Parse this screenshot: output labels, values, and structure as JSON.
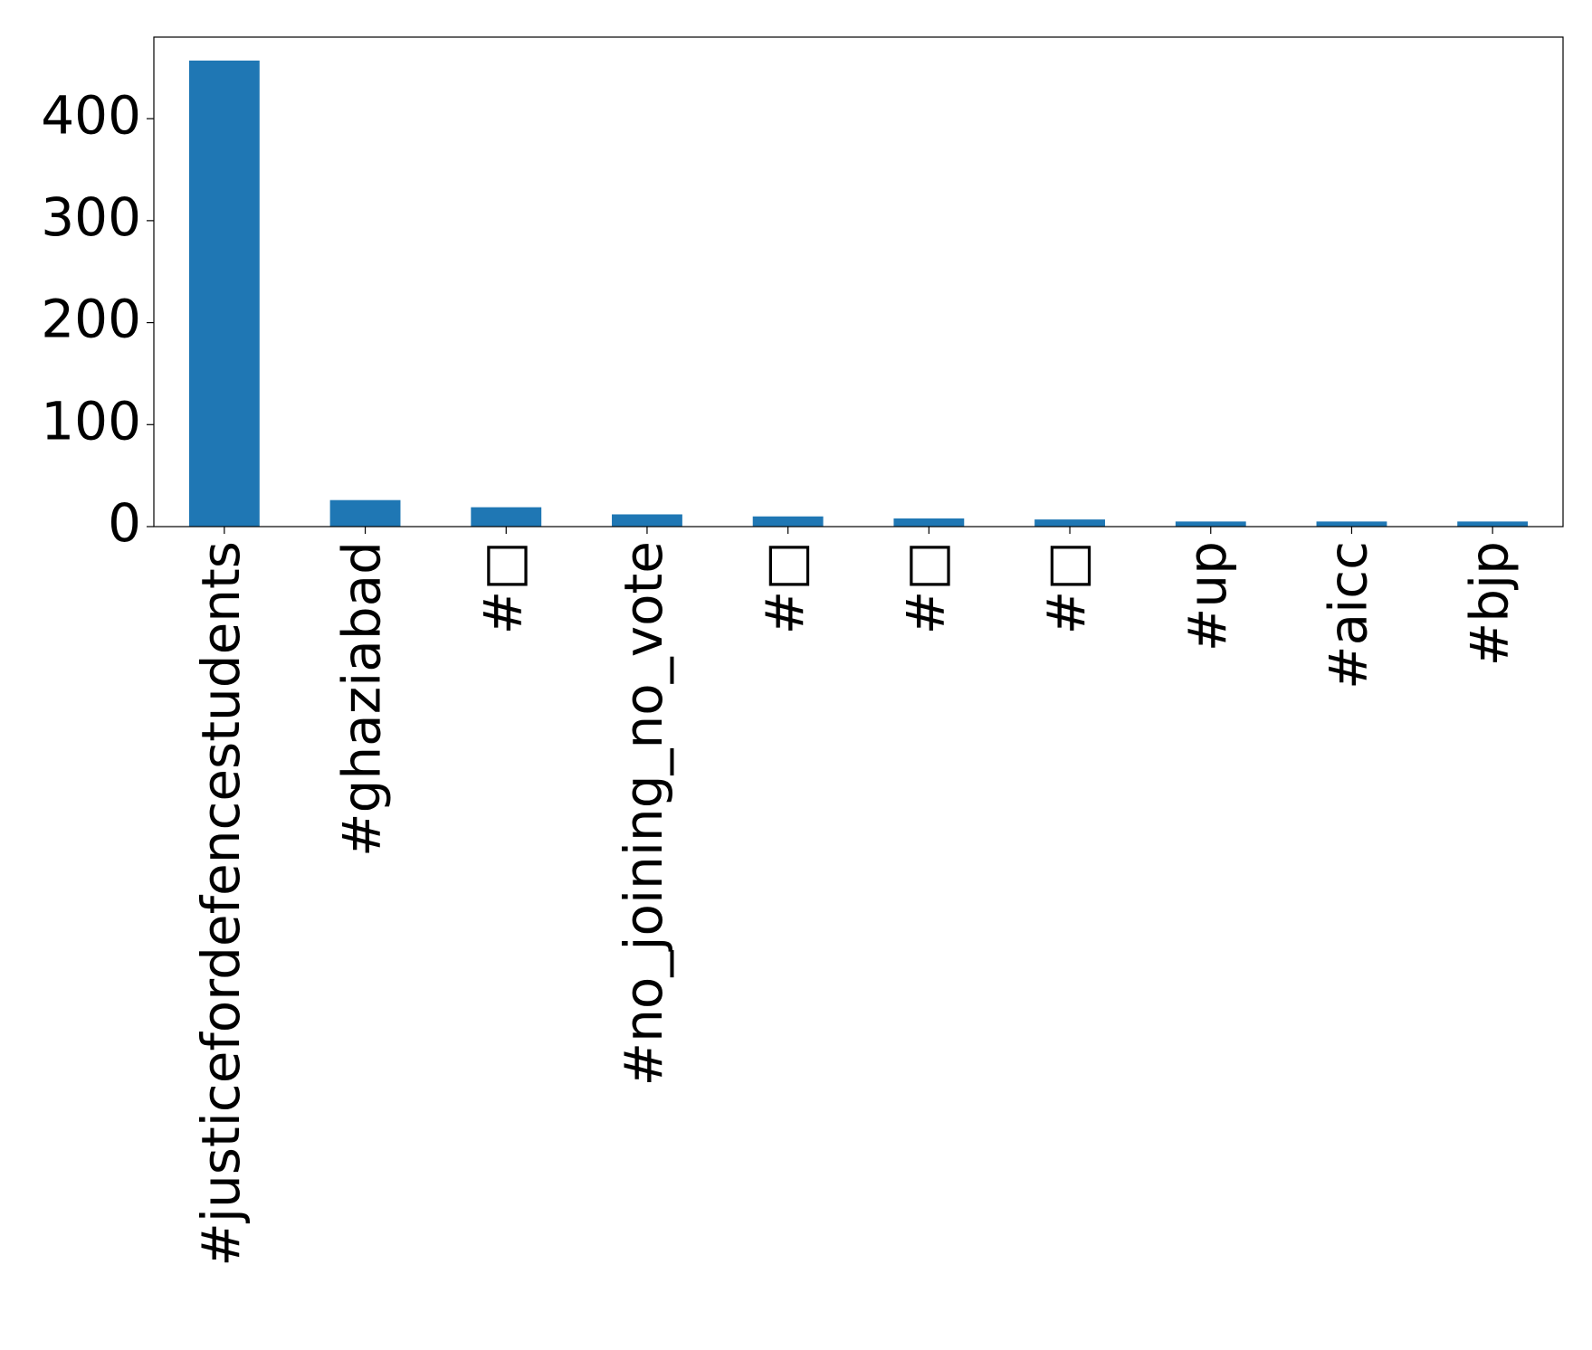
{
  "chart_data": {
    "type": "bar",
    "categories": [
      "#justicefordefencestudents",
      "#ghaziabad",
      "#□",
      "#no_joining_no_vote",
      "#□",
      "#□",
      "#□",
      "#up",
      "#aicc",
      "#bjp"
    ],
    "values": [
      457,
      26,
      19,
      12,
      10,
      8,
      7,
      5,
      5,
      5
    ],
    "color": "#1f77b4",
    "ylim": [
      0,
      480
    ],
    "yticks": [
      0,
      100,
      200,
      300,
      400
    ],
    "grid": false
  }
}
